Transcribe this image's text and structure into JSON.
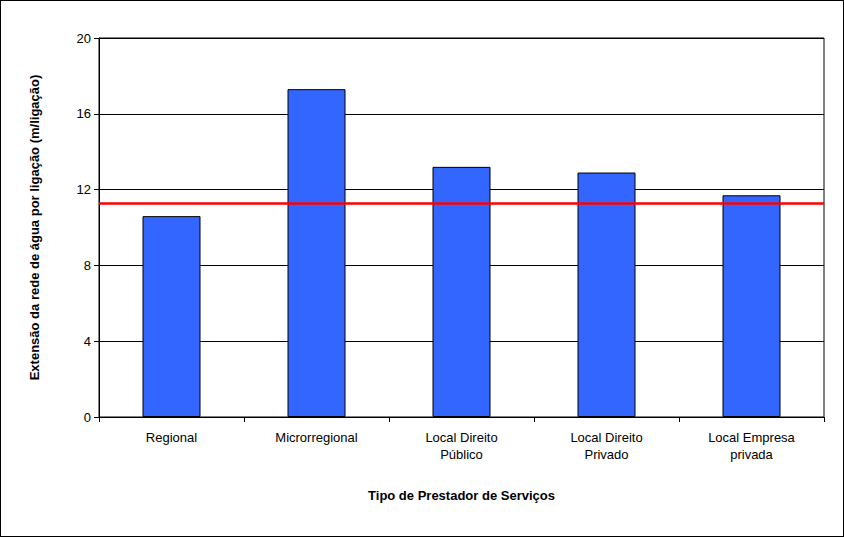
{
  "chart_data": {
    "type": "bar",
    "xlabel": "Tipo de Prestador de Serviços",
    "ylabel": "Extensão da rede de água por ligação (m/ligação)",
    "categories": [
      "Regional",
      "Microrregional",
      "Local Direito\nPúblico",
      "Local Direito\nPrivado",
      "Local Empresa\nprivada"
    ],
    "values": [
      10.6,
      17.3,
      13.2,
      12.9,
      11.7
    ],
    "color": "#3366ff",
    "reference_line": {
      "value": 11.3,
      "color": "#ff0000"
    },
    "ylim": [
      0,
      20
    ],
    "yticks": [
      0,
      4,
      8,
      12,
      16,
      20
    ],
    "grid": true
  }
}
